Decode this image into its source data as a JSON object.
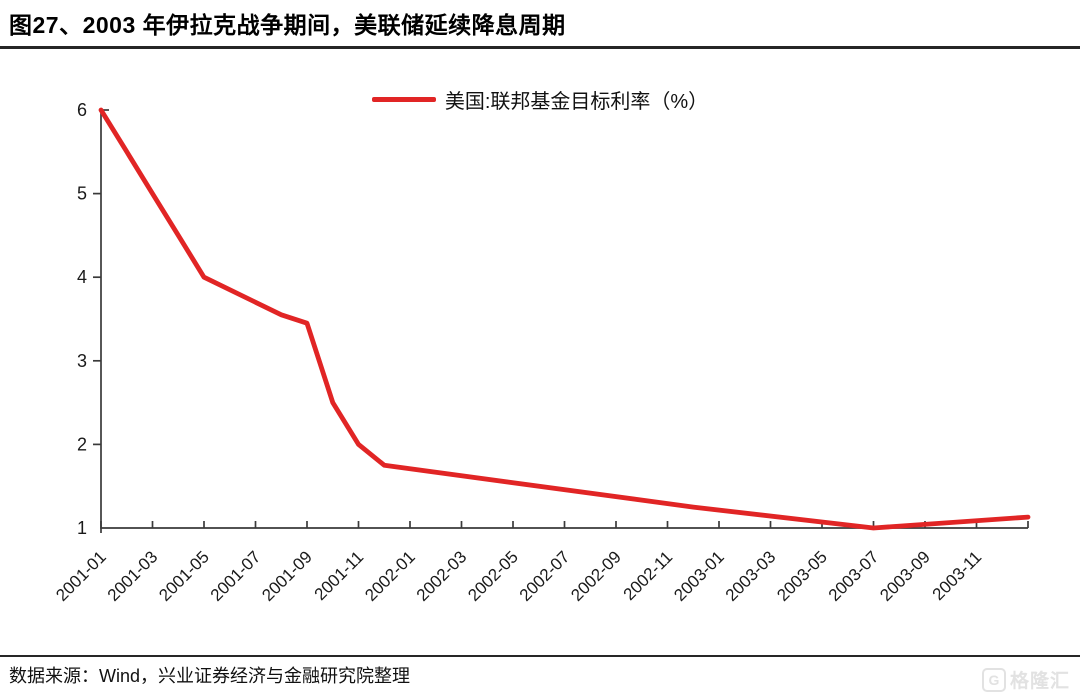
{
  "header": {
    "title": "图27、2003 年伊拉克战争期间，美联储延续降息周期"
  },
  "legend": {
    "label": "美国:联邦基金目标利率（%）",
    "line_color": "#e12525"
  },
  "chart_data": {
    "type": "line",
    "title": "图27、2003 年伊拉克战争期间，美联储延续降息周期",
    "xlabel": "",
    "ylabel": "",
    "ylim": [
      1,
      6
    ],
    "y_ticks": [
      1,
      2,
      3,
      4,
      5,
      6
    ],
    "x_month_span": 36,
    "x_tick_labels": [
      "2001-01",
      "2001-03",
      "2001-05",
      "2001-07",
      "2001-09",
      "2001-11",
      "2002-01",
      "2002-03",
      "2002-05",
      "2002-07",
      "2002-09",
      "2002-11",
      "2003-01",
      "2003-03",
      "2003-05",
      "2003-07",
      "2003-09",
      "2003-11"
    ],
    "grid": false,
    "legend_position": "top-center",
    "interpolation": "linear between listed vertices",
    "axis_color": "#3a3a3a",
    "series": [
      {
        "name": "美国:联邦基金目标利率（%）",
        "color": "#e12525",
        "points": [
          {
            "x": "2001-01",
            "month_index": 0,
            "y": 6.0
          },
          {
            "x": "2001-02",
            "month_index": 1,
            "y": 5.5
          },
          {
            "x": "2001-03",
            "month_index": 2,
            "y": 5.0
          },
          {
            "x": "2001-04",
            "month_index": 3,
            "y": 4.5
          },
          {
            "x": "2001-05",
            "month_index": 4,
            "y": 4.0
          },
          {
            "x": "2001-08",
            "month_index": 7,
            "y": 3.55
          },
          {
            "x": "2001-09",
            "month_index": 8,
            "y": 3.45
          },
          {
            "x": "2001-10",
            "month_index": 9,
            "y": 2.5
          },
          {
            "x": "2001-11",
            "month_index": 10,
            "y": 2.0
          },
          {
            "x": "2001-12",
            "month_index": 11,
            "y": 1.75
          },
          {
            "x": "2002-12",
            "month_index": 23,
            "y": 1.25
          },
          {
            "x": "2003-07",
            "month_index": 30,
            "y": 1.0
          },
          {
            "x": "2004-01",
            "month_index": 36,
            "y": 1.13
          }
        ]
      }
    ]
  },
  "footer": {
    "source": "数据来源：Wind，兴业证券经济与金融研究院整理"
  },
  "watermark": {
    "icon": "gelonghui-G",
    "icon_letter": "G",
    "text": "格隆汇",
    "color": "#e2e2e2"
  }
}
